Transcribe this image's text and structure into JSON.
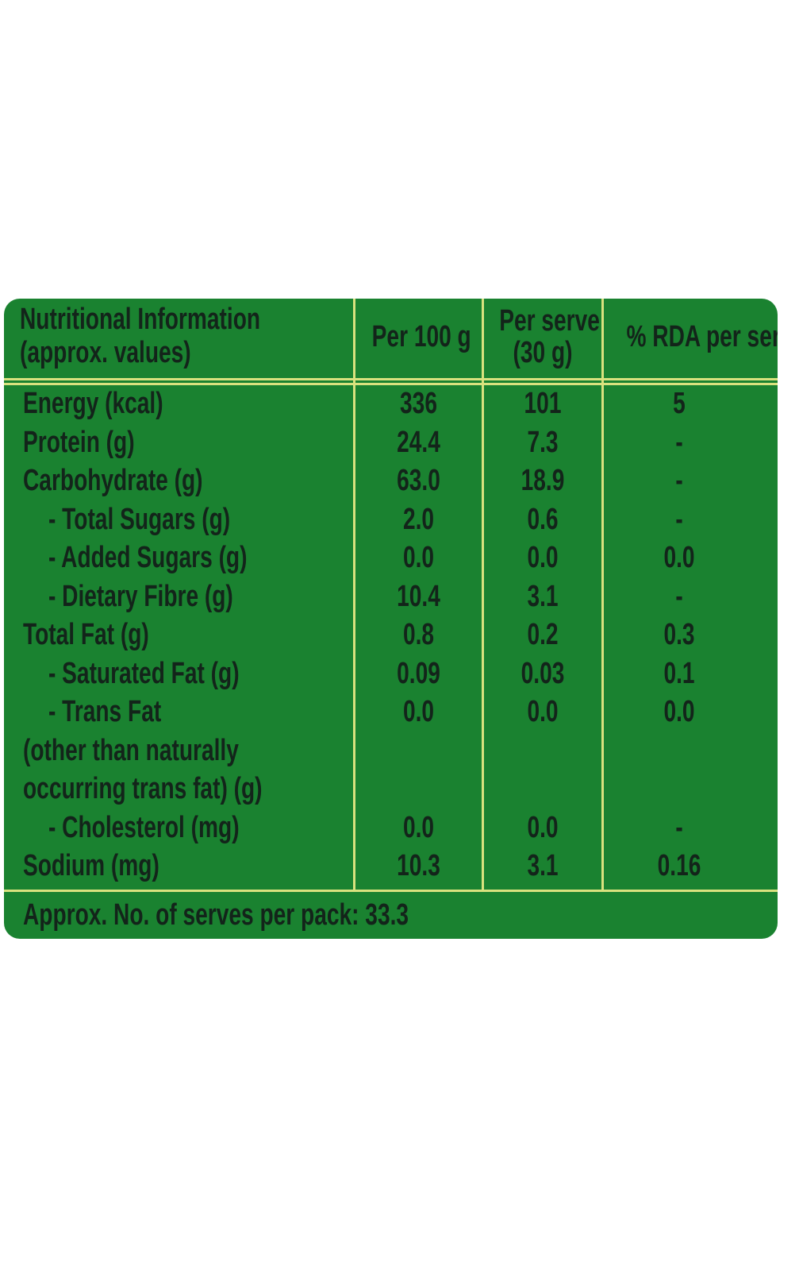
{
  "header": {
    "title_line1": "Nutritional Information",
    "title_line2": "(approx. values)",
    "col_per100": "Per 100 g",
    "col_serve_line1": "Per serve",
    "col_serve_line2": "(30 g)",
    "col_rda": "% RDA per serve"
  },
  "rows": [
    {
      "label": [
        "Energy (kcal)"
      ],
      "indent": false,
      "per100": "336",
      "serve": "101",
      "rda": "5"
    },
    {
      "label": [
        "Protein (g)"
      ],
      "indent": false,
      "per100": "24.4",
      "serve": "7.3",
      "rda": "-"
    },
    {
      "label": [
        "Carbohydrate (g)"
      ],
      "indent": false,
      "per100": "63.0",
      "serve": "18.9",
      "rda": "-"
    },
    {
      "label": [
        "- Total Sugars (g)"
      ],
      "indent": true,
      "per100": "2.0",
      "serve": "0.6",
      "rda": "-"
    },
    {
      "label": [
        "- Added Sugars (g)"
      ],
      "indent": true,
      "per100": "0.0",
      "serve": "0.0",
      "rda": "0.0"
    },
    {
      "label": [
        "- Dietary Fibre (g)"
      ],
      "indent": true,
      "per100": "10.4",
      "serve": "3.1",
      "rda": "-"
    },
    {
      "label": [
        "Total Fat (g)"
      ],
      "indent": false,
      "per100": "0.8",
      "serve": "0.2",
      "rda": "0.3"
    },
    {
      "label": [
        "- Saturated Fat (g)"
      ],
      "indent": true,
      "per100": "0.09",
      "serve": "0.03",
      "rda": "0.1"
    },
    {
      "label": [
        "- Trans Fat",
        "(other than naturally",
        "occurring trans fat) (g)"
      ],
      "indent": true,
      "per100": "0.0",
      "serve": "0.0",
      "rda": "0.0"
    },
    {
      "label": [
        "- Cholesterol (mg)"
      ],
      "indent": true,
      "per100": "0.0",
      "serve": "0.0",
      "rda": "-"
    },
    {
      "label": [
        "Sodium (mg)"
      ],
      "indent": false,
      "per100": "10.3",
      "serve": "3.1",
      "rda": "0.16"
    }
  ],
  "footer": "Approx. No. of serves per pack: 33.3",
  "colors": {
    "background": "#1a8230",
    "lines": "#d9e27e",
    "text": "#13241a"
  }
}
